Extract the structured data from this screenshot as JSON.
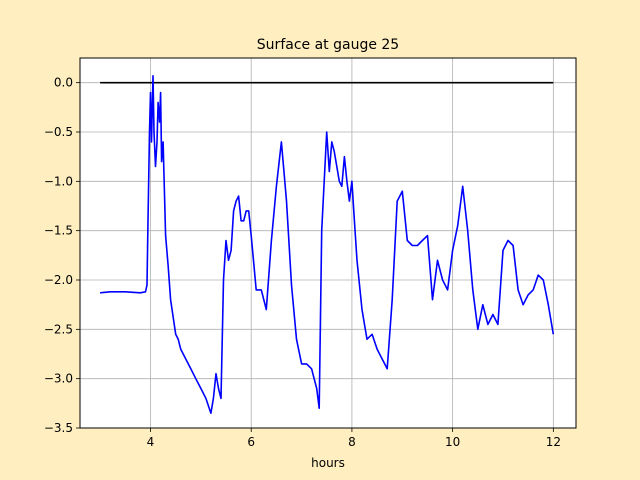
{
  "chart_data": {
    "type": "line",
    "title": "Surface at gauge 25",
    "xlabel": "hours",
    "ylabel": "",
    "xlim": [
      2.6,
      12.45
    ],
    "ylim": [
      -3.5,
      0.25
    ],
    "xticks": [
      4,
      6,
      8,
      10,
      12
    ],
    "yticks": [
      0.0,
      -0.5,
      -1.0,
      -1.5,
      -2.0,
      -2.5,
      -3.0,
      -3.5
    ],
    "xtick_labels": [
      "4",
      "6",
      "8",
      "10",
      "12"
    ],
    "ytick_labels": [
      "0.0",
      "−0.5",
      "−1.0",
      "−1.5",
      "−2.0",
      "−2.5",
      "−3.0",
      "−3.5"
    ],
    "grid": true,
    "series": [
      {
        "color": "#000000",
        "x": [
          3.0,
          12.0
        ],
        "y": [
          0.0,
          0.0
        ]
      },
      {
        "color": "#0000ff",
        "x": [
          3.0,
          3.2,
          3.5,
          3.8,
          3.9,
          3.93,
          3.95,
          3.98,
          4.0,
          4.02,
          4.05,
          4.07,
          4.1,
          4.13,
          4.15,
          4.18,
          4.2,
          4.22,
          4.25,
          4.3,
          4.35,
          4.4,
          4.5,
          4.55,
          4.6,
          4.7,
          4.8,
          4.9,
          5.0,
          5.1,
          5.2,
          5.25,
          5.3,
          5.35,
          5.4,
          5.45,
          5.5,
          5.55,
          5.6,
          5.65,
          5.7,
          5.75,
          5.8,
          5.85,
          5.9,
          5.95,
          6.0,
          6.1,
          6.2,
          6.3,
          6.4,
          6.5,
          6.6,
          6.7,
          6.8,
          6.9,
          7.0,
          7.1,
          7.2,
          7.3,
          7.35,
          7.4,
          7.45,
          7.5,
          7.55,
          7.6,
          7.65,
          7.7,
          7.75,
          7.8,
          7.85,
          7.9,
          7.95,
          8.0,
          8.05,
          8.1,
          8.2,
          8.3,
          8.4,
          8.5,
          8.6,
          8.7,
          8.8,
          8.9,
          9.0,
          9.1,
          9.2,
          9.3,
          9.4,
          9.5,
          9.6,
          9.7,
          9.8,
          9.9,
          10.0,
          10.1,
          10.2,
          10.3,
          10.4,
          10.5,
          10.6,
          10.7,
          10.8,
          10.9,
          11.0,
          11.1,
          11.2,
          11.3,
          11.4,
          11.5,
          11.6,
          11.7,
          11.8,
          11.9,
          12.0
        ],
        "y": [
          -2.13,
          -2.12,
          -2.12,
          -2.13,
          -2.12,
          -2.05,
          -1.4,
          -0.5,
          -0.1,
          -0.6,
          0.07,
          -0.5,
          -0.85,
          -0.6,
          -0.2,
          -0.4,
          -0.1,
          -0.8,
          -0.6,
          -1.55,
          -1.85,
          -2.2,
          -2.55,
          -2.6,
          -2.7,
          -2.8,
          -2.9,
          -3.0,
          -3.1,
          -3.2,
          -3.35,
          -3.2,
          -2.95,
          -3.1,
          -3.2,
          -2.0,
          -1.6,
          -1.8,
          -1.7,
          -1.3,
          -1.2,
          -1.15,
          -1.4,
          -1.4,
          -1.3,
          -1.3,
          -1.55,
          -2.1,
          -2.1,
          -2.3,
          -1.6,
          -1.05,
          -0.6,
          -1.2,
          -2.05,
          -2.6,
          -2.85,
          -2.85,
          -2.9,
          -3.1,
          -3.3,
          -1.5,
          -1.0,
          -0.5,
          -0.9,
          -0.6,
          -0.7,
          -0.85,
          -1.0,
          -1.05,
          -0.75,
          -1.0,
          -1.2,
          -1.0,
          -1.4,
          -1.8,
          -2.3,
          -2.6,
          -2.55,
          -2.7,
          -2.8,
          -2.9,
          -2.2,
          -1.2,
          -1.1,
          -1.6,
          -1.65,
          -1.65,
          -1.6,
          -1.55,
          -2.2,
          -1.8,
          -2.0,
          -2.1,
          -1.7,
          -1.45,
          -1.05,
          -1.5,
          -2.1,
          -2.5,
          -2.25,
          -2.45,
          -2.35,
          -2.45,
          -1.7,
          -1.6,
          -1.65,
          -2.1,
          -2.25,
          -2.15,
          -2.1,
          -1.95,
          -2.0,
          -2.25,
          -2.55
        ]
      }
    ]
  }
}
